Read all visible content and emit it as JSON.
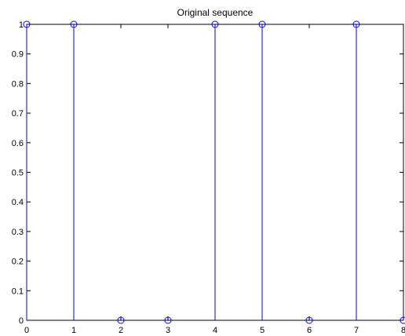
{
  "chart_data": {
    "type": "stem",
    "title": "Original sequence",
    "xlabel": "",
    "ylabel": "",
    "xlim": [
      0,
      8
    ],
    "ylim": [
      0,
      1
    ],
    "x_ticks": [
      "0",
      "1",
      "2",
      "3",
      "4",
      "5",
      "6",
      "7",
      "8"
    ],
    "y_ticks": [
      "0",
      "0.1",
      "0.2",
      "0.3",
      "0.4",
      "0.5",
      "0.6",
      "0.7",
      "0.8",
      "0.9",
      "1"
    ],
    "series": [
      {
        "x": [
          0,
          1,
          2,
          3,
          4,
          5,
          6,
          7,
          8
        ],
        "y": [
          1,
          1,
          0,
          0,
          1,
          1,
          0,
          1,
          0
        ],
        "marker": "circle",
        "color": "#0000ff"
      }
    ],
    "grid": false,
    "legend": "none"
  },
  "colors": {
    "axes": "#000000",
    "background": "#ffffff",
    "stem": "#0000ff"
  }
}
